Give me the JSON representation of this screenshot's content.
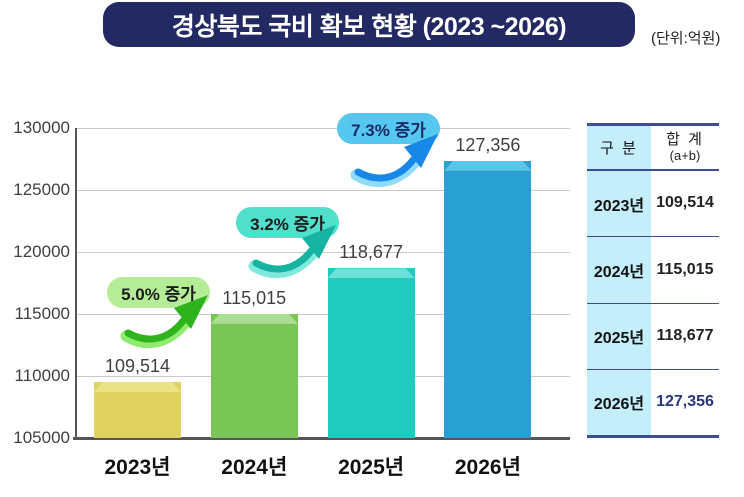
{
  "title": {
    "text": "경상북도 국비 확보 현황 (2023 ~2026)",
    "unit": "(단위:억원)"
  },
  "colors": {
    "banner_bg": "#232a63",
    "banner_text": "#ffffff",
    "unit_text": "#222222",
    "axis_text": "#3f3f3f",
    "xlabel": "#111111",
    "grid": "#c9c9c9",
    "axis_line": "#555555",
    "badge1_bg": "#b5ec97",
    "badge2_bg": "#50dfcb",
    "badge3_bg": "#56c8f0",
    "badge_text": "#1c1c1c",
    "badge3_text": "#1b2a66",
    "arrow1_dark": "#2fb31c",
    "arrow1_light": "#90ea6e",
    "arrow2_dark": "#17b3a2",
    "arrow2_light": "#7fe9db",
    "arrow3_dark": "#1787e8",
    "arrow3_light": "#90dcf8",
    "table_border": "#3e4d92",
    "table_cyan": "#c3eefa",
    "table_value_hl": "#27357e"
  },
  "chart_data": {
    "type": "bar",
    "title": "경상북도 국비 확보 현황 (2023 ~2026)",
    "unit_label": "(단위:억원)",
    "categories": [
      "2023년",
      "2024년",
      "2025년",
      "2026년"
    ],
    "values": [
      109514,
      115015,
      118677,
      127356
    ],
    "value_labels": [
      "109,514",
      "115,015",
      "118,677",
      "127,356"
    ],
    "bar_colors": [
      {
        "body": "#ddd35e",
        "cap": "#eae287"
      },
      {
        "body": "#79c657",
        "cap": "#abdd92"
      },
      {
        "body": "#1fccbf",
        "cap": "#6fe0d6"
      },
      {
        "body": "#2a9fd3",
        "cap": "#5ac5e8"
      }
    ],
    "ylim": [
      105000,
      130000
    ],
    "yticks": [
      105000,
      110000,
      115000,
      120000,
      125000,
      130000
    ],
    "grid": true,
    "legend": false,
    "annotations": [
      {
        "label": "5.0% 증가",
        "percent": 5.0,
        "from": "2023년",
        "to": "2024년"
      },
      {
        "label": "3.2% 증가",
        "percent": 3.2,
        "from": "2024년",
        "to": "2025년"
      },
      {
        "label": "7.3% 증가",
        "percent": 7.3,
        "from": "2025년",
        "to": "2026년"
      }
    ]
  },
  "table": {
    "header": {
      "col1": "구 분",
      "col2": "합 계",
      "col2_sub": "(a+b)"
    },
    "rows": [
      {
        "label": "2023년",
        "value": "109,514"
      },
      {
        "label": "2024년",
        "value": "115,015"
      },
      {
        "label": "2025년",
        "value": "118,677"
      },
      {
        "label": "2026년",
        "value": "127,356",
        "highlight": true
      }
    ]
  }
}
